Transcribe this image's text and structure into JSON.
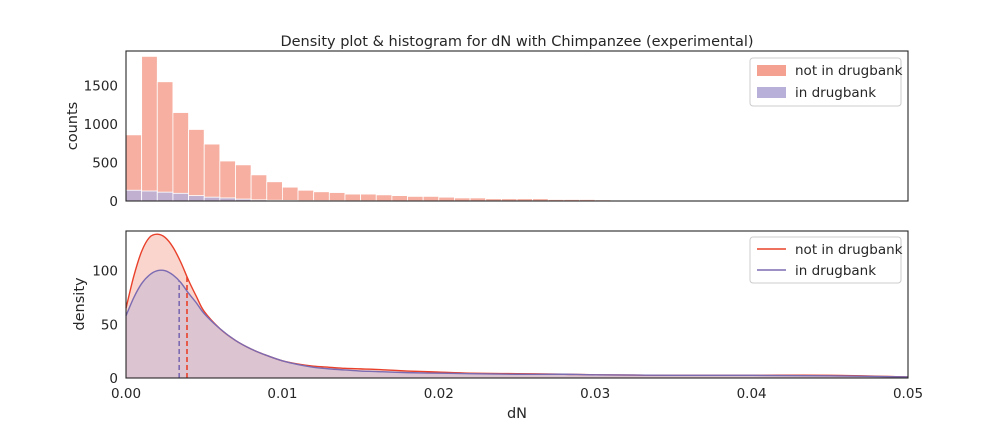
{
  "title": "Density plot & histogram for dN with Chimpanzee (experimental)",
  "colors": {
    "not_in_drugbank": "#e8402a",
    "not_in_drugbank_fill": "#f4a191",
    "in_drugbank": "#7b6bb2",
    "in_drugbank_fill": "#b8b0d8",
    "axes": "#262626"
  },
  "chart_data": [
    {
      "type": "bar",
      "title": "Density plot & histogram for dN with Chimpanzee (experimental)",
      "xlabel": "",
      "ylabel": "counts",
      "xlim": [
        0.0,
        0.05
      ],
      "ylim": [
        0,
        1950
      ],
      "yticks": [
        "0",
        "500",
        "1000",
        "1500"
      ],
      "ytick_values": [
        0,
        500,
        1000,
        1500
      ],
      "bin_width": 0.001,
      "bin_start": 0.0,
      "legend_position": "top-right",
      "grid": false,
      "series": [
        {
          "name": "not in drugbank",
          "values": [
            860,
            1880,
            1550,
            1150,
            930,
            740,
            520,
            470,
            340,
            250,
            180,
            140,
            120,
            110,
            90,
            90,
            80,
            70,
            60,
            60,
            50,
            40,
            40,
            30,
            30,
            30,
            30,
            20,
            20,
            20,
            15,
            10,
            10,
            10,
            8,
            8,
            10,
            5,
            5,
            5,
            5,
            5,
            5,
            5,
            5,
            5,
            5,
            5,
            5,
            3
          ]
        },
        {
          "name": "in drugbank",
          "values": [
            140,
            130,
            115,
            100,
            70,
            50,
            40,
            25,
            15,
            10,
            8,
            5,
            5,
            4,
            3,
            3,
            2,
            2,
            2,
            2,
            1,
            1,
            1,
            1,
            1,
            1,
            1,
            1,
            1,
            1,
            1,
            1,
            1,
            1,
            1,
            1,
            1,
            1,
            1,
            1,
            1,
            1,
            1,
            1,
            1,
            1,
            1,
            1,
            1,
            1
          ]
        }
      ]
    },
    {
      "type": "area",
      "xlabel": "dN",
      "ylabel": "density",
      "xlim": [
        0.0,
        0.05
      ],
      "ylim": [
        0,
        137
      ],
      "xticks": [
        "0.00",
        "0.01",
        "0.02",
        "0.03",
        "0.04",
        "0.05"
      ],
      "xtick_values": [
        0.0,
        0.01,
        0.02,
        0.03,
        0.04,
        0.05
      ],
      "yticks": [
        "0",
        "50",
        "100"
      ],
      "ytick_values": [
        0,
        50,
        100
      ],
      "legend_position": "top-right",
      "grid": false,
      "x": [
        0.0,
        0.0005,
        0.001,
        0.0015,
        0.002,
        0.0025,
        0.003,
        0.0035,
        0.004,
        0.0045,
        0.005,
        0.006,
        0.007,
        0.008,
        0.009,
        0.01,
        0.011,
        0.012,
        0.013,
        0.014,
        0.015,
        0.016,
        0.018,
        0.02,
        0.022,
        0.025,
        0.028,
        0.03,
        0.035,
        0.04,
        0.045,
        0.05
      ],
      "series": [
        {
          "name": "not in drugbank",
          "values": [
            65,
            95,
            118,
            131,
            134,
            131,
            122,
            108,
            91,
            76,
            62,
            46,
            35,
            27,
            21,
            16,
            13,
            11,
            10,
            9,
            8.5,
            8,
            6.5,
            5.5,
            4.5,
            4,
            3.5,
            3,
            2.5,
            2.5,
            2.5,
            1
          ],
          "mean": 0.0039
        },
        {
          "name": "in drugbank",
          "values": [
            58,
            75,
            88,
            96,
            100,
            100,
            96,
            89,
            79,
            70,
            60,
            46,
            35,
            27,
            21,
            16,
            12.5,
            10,
            8.5,
            7.5,
            6.5,
            6,
            5,
            4.5,
            4,
            3.5,
            3.5,
            3,
            2.5,
            2.5,
            2,
            1
          ],
          "mean": 0.0034
        }
      ]
    }
  ]
}
